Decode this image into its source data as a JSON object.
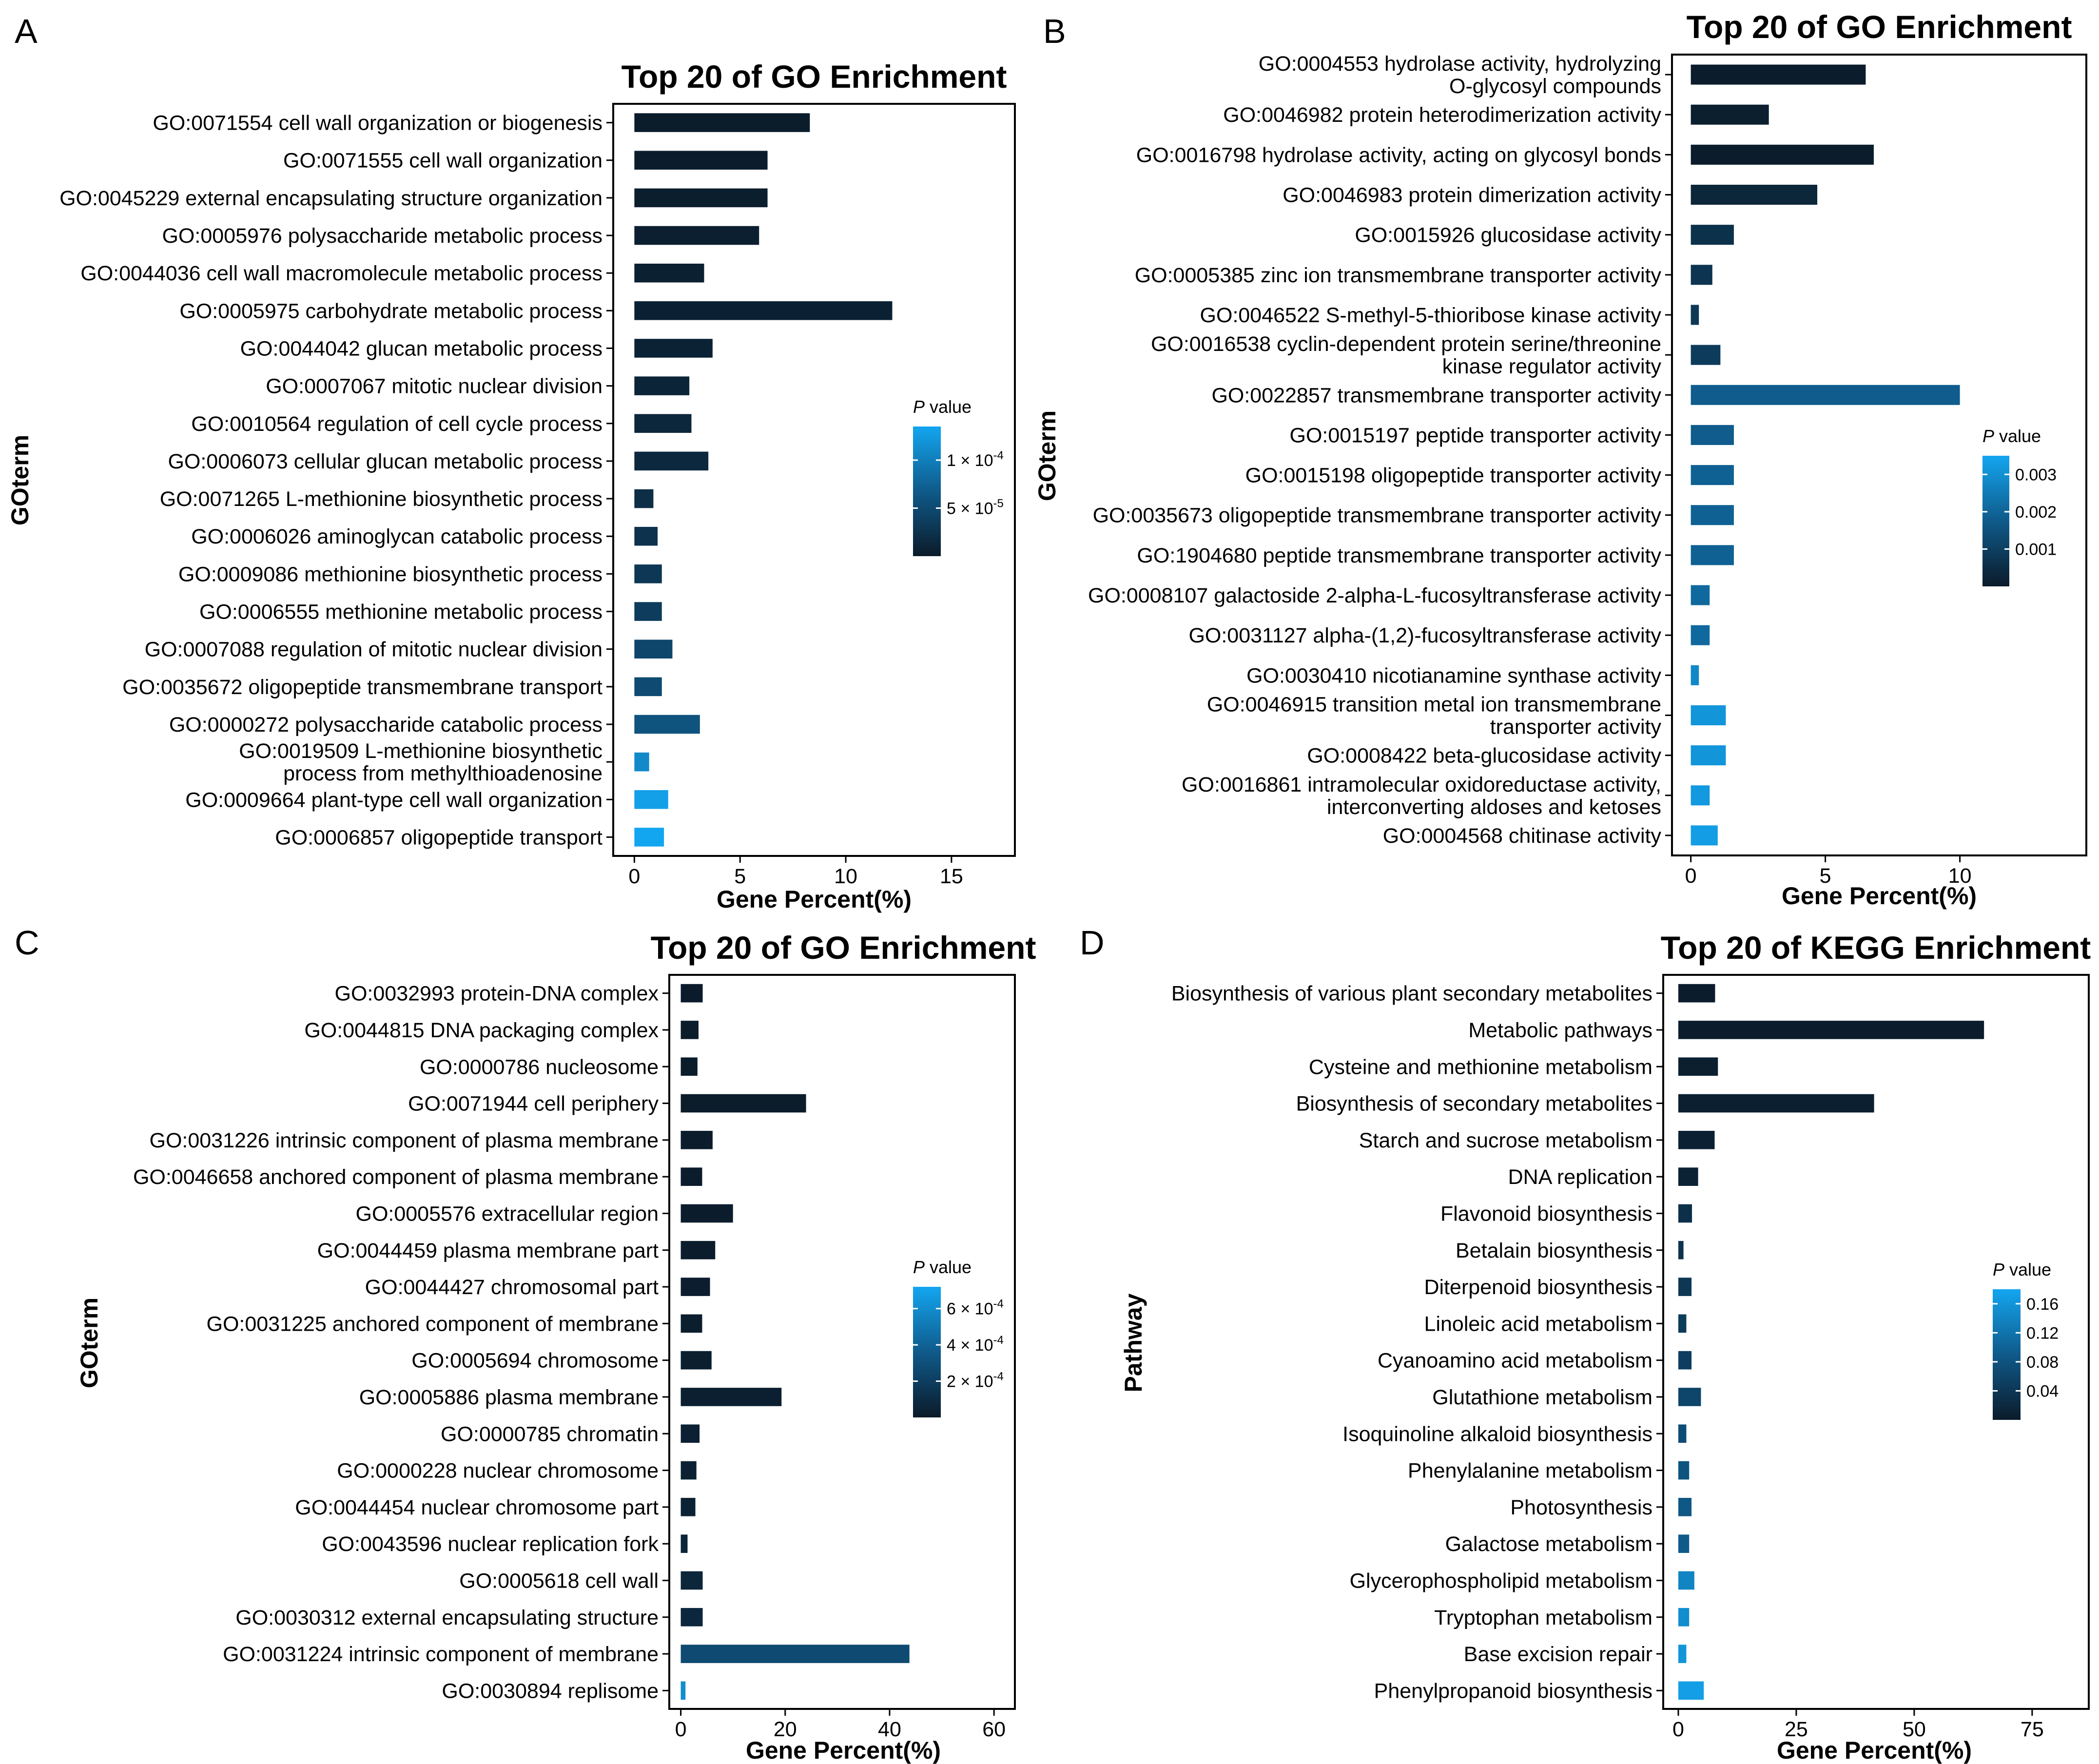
{
  "figure": {
    "panel_letters": [
      "A",
      "B",
      "C",
      "D"
    ]
  },
  "legend_label": {
    "p": "P",
    "rest": " value"
  },
  "chart_data": [
    {
      "panel": "A",
      "type": "bar",
      "orientation": "horizontal",
      "title": "Top 20 of GO Enrichment",
      "xlabel": "Gene Percent(%)",
      "ylabel": "GOterm",
      "xlim": [
        -1,
        18
      ],
      "xticks": [
        0,
        5,
        10,
        15
      ],
      "categories": [
        [
          "GO:0071554 cell wall organization or biogenesis"
        ],
        [
          "GO:0071555 cell wall organization"
        ],
        [
          "GO:0045229 external encapsulating structure organization"
        ],
        [
          "GO:0005976 polysaccharide metabolic process"
        ],
        [
          "GO:0044036 cell wall macromolecule metabolic process"
        ],
        [
          "GO:0005975 carbohydrate metabolic process"
        ],
        [
          "GO:0044042 glucan metabolic process"
        ],
        [
          "GO:0007067 mitotic nuclear division"
        ],
        [
          "GO:0010564 regulation of cell cycle process"
        ],
        [
          "GO:0006073 cellular glucan metabolic process"
        ],
        [
          "GO:0071265 L-methionine biosynthetic process"
        ],
        [
          "GO:0006026 aminoglycan catabolic process"
        ],
        [
          "GO:0009086 methionine biosynthetic process"
        ],
        [
          "GO:0006555 methionine metabolic process"
        ],
        [
          "GO:0007088 regulation of mitotic nuclear division"
        ],
        [
          "GO:0035672 oligopeptide transmembrane transport"
        ],
        [
          "GO:0000272 polysaccharide catabolic process"
        ],
        [
          "GO:0019509 L-methionine biosynthetic",
          "process from methylthioadenosine"
        ],
        [
          "GO:0009664 plant-type cell wall organization"
        ],
        [
          "GO:0006857 oligopeptide transport"
        ]
      ],
      "values": [
        8.3,
        6.3,
        6.3,
        5.9,
        3.3,
        12.2,
        3.7,
        2.6,
        2.7,
        3.5,
        0.9,
        1.1,
        1.3,
        1.3,
        1.8,
        1.3,
        3.1,
        0.7,
        1.6,
        1.4
      ],
      "pvalues": [
        1e-06,
        2e-06,
        3e-06,
        4e-06,
        5e-06,
        6e-06,
        8e-06,
        1e-05,
        1.2e-05,
        1.4e-05,
        2e-05,
        2.5e-05,
        3e-05,
        3.5e-05,
        4.5e-05,
        5e-05,
        6e-05,
        0.00011,
        0.00013,
        0.000135
      ],
      "legend": {
        "range": [
          0,
          0.000135
        ],
        "ticks": [
          {
            "value": 0.0001,
            "base": "1 × 10",
            "exp": "-4"
          },
          {
            "value": 5e-05,
            "base": "5 × 10",
            "exp": "-5"
          }
        ]
      }
    },
    {
      "panel": "B",
      "type": "bar",
      "orientation": "horizontal",
      "title": "Top 20 of GO Enrichment",
      "xlabel": "Gene Percent(%)",
      "ylabel": "GOterm",
      "xlim": [
        -0.7,
        14.7
      ],
      "xticks": [
        0,
        5,
        10
      ],
      "categories": [
        [
          "GO:0004553 hydrolase activity, hydrolyzing",
          "O-glycosyl compounds"
        ],
        [
          "GO:0046982 protein heterodimerization activity"
        ],
        [
          "GO:0016798 hydrolase activity, acting on glycosyl bonds"
        ],
        [
          "GO:0046983 protein dimerization activity"
        ],
        [
          "GO:0015926 glucosidase activity"
        ],
        [
          "GO:0005385 zinc ion transmembrane transporter activity"
        ],
        [
          "GO:0046522 S-methyl-5-thioribose kinase activity"
        ],
        [
          "GO:0016538 cyclin-dependent protein serine/threonine",
          "kinase regulator activity"
        ],
        [
          "GO:0022857 transmembrane transporter activity"
        ],
        [
          "GO:0015197 peptide transporter activity"
        ],
        [
          "GO:0015198 oligopeptide transporter activity"
        ],
        [
          "GO:0035673 oligopeptide transmembrane transporter activity"
        ],
        [
          "GO:1904680 peptide transmembrane transporter activity"
        ],
        [
          "GO:0008107 galactoside 2-alpha-L-fucosyltransferase activity"
        ],
        [
          "GO:0031127 alpha-(1,2)-fucosyltransferase activity"
        ],
        [
          "GO:0030410 nicotianamine synthase activity"
        ],
        [
          "GO:0046915 transition metal ion transmembrane",
          "transporter activity"
        ],
        [
          "GO:0008422 beta-glucosidase activity"
        ],
        [
          "GO:0016861 intramolecular oxidoreductase activity,",
          "interconverting aldoses and ketoses"
        ],
        [
          "GO:0004568 chitinase activity"
        ]
      ],
      "values": [
        6.5,
        2.9,
        6.8,
        4.7,
        1.6,
        0.8,
        0.3,
        1.1,
        10.0,
        1.6,
        1.6,
        1.6,
        1.6,
        0.7,
        0.7,
        0.3,
        1.3,
        1.3,
        0.7,
        1.0
      ],
      "pvalues": [
        3e-05,
        0.0001,
        5e-05,
        0.0003,
        0.0006,
        0.0007,
        0.0008,
        0.0009,
        0.0018,
        0.0018,
        0.0019,
        0.0019,
        0.0019,
        0.0021,
        0.0021,
        0.0028,
        0.0031,
        0.0031,
        0.0032,
        0.0033
      ],
      "legend": {
        "range": [
          0,
          0.0035
        ],
        "ticks": [
          {
            "value": 0.003,
            "base": "0.003"
          },
          {
            "value": 0.002,
            "base": "0.002"
          },
          {
            "value": 0.001,
            "base": "0.001"
          }
        ]
      }
    },
    {
      "panel": "C",
      "type": "bar",
      "orientation": "horizontal",
      "title": "Top 20 of GO Enrichment",
      "xlabel": "Gene Percent(%)",
      "ylabel": "GOterm",
      "xlim": [
        -2.2,
        64
      ],
      "xticks": [
        0,
        20,
        40,
        60
      ],
      "categories": [
        [
          "GO:0032993 protein-DNA complex"
        ],
        [
          "GO:0044815 DNA packaging complex"
        ],
        [
          "GO:0000786 nucleosome"
        ],
        [
          "GO:0071944 cell periphery"
        ],
        [
          "GO:0031226 intrinsic component of plasma membrane"
        ],
        [
          "GO:0046658 anchored component of plasma membrane"
        ],
        [
          "GO:0005576 extracellular region"
        ],
        [
          "GO:0044459 plasma membrane part"
        ],
        [
          "GO:0044427 chromosomal part"
        ],
        [
          "GO:0031225 anchored component of membrane"
        ],
        [
          "GO:0005694 chromosome"
        ],
        [
          "GO:0005886 plasma membrane"
        ],
        [
          "GO:0000785 chromatin"
        ],
        [
          "GO:0000228 nuclear chromosome"
        ],
        [
          "GO:0044454 nuclear chromosome part"
        ],
        [
          "GO:0043596 nuclear replication fork"
        ],
        [
          "GO:0005618 cell wall"
        ],
        [
          "GO:0030312 external encapsulating structure"
        ],
        [
          "GO:0031224 intrinsic component of membrane"
        ],
        [
          "GO:0030894 replisome"
        ]
      ],
      "values": [
        4.2,
        3.4,
        3.2,
        24.0,
        6.1,
        4.1,
        10.0,
        6.6,
        5.6,
        4.1,
        5.9,
        19.3,
        3.6,
        3.0,
        2.8,
        1.3,
        4.2,
        4.2,
        43.8,
        0.9
      ],
      "pvalues": [
        2e-06,
        3e-06,
        4e-06,
        5e-06,
        6e-06,
        8e-06,
        1e-05,
        1.2e-05,
        1.4e-05,
        1.6e-05,
        2e-05,
        2.5e-05,
        3e-05,
        3.5e-05,
        4e-05,
        5e-05,
        6e-05,
        7e-05,
        0.00027,
        0.0006
      ],
      "legend": {
        "range": [
          0,
          0.00072
        ],
        "ticks": [
          {
            "value": 0.0006,
            "base": "6 × 10",
            "exp": "-4"
          },
          {
            "value": 0.0004,
            "base": "4 × 10",
            "exp": "-4"
          },
          {
            "value": 0.0002,
            "base": "2 × 10",
            "exp": "-4"
          }
        ]
      }
    },
    {
      "panel": "D",
      "type": "bar",
      "orientation": "horizontal",
      "title": "Top 20 of KEGG Enrichment",
      "xlabel": "Gene Percent(%)",
      "ylabel": "Pathway",
      "xlim": [
        -3.2,
        87
      ],
      "xticks": [
        0,
        25,
        50,
        75
      ],
      "categories": [
        [
          "Biosynthesis of various plant secondary metabolites"
        ],
        [
          "Metabolic pathways"
        ],
        [
          "Cysteine and methionine metabolism"
        ],
        [
          "Biosynthesis of secondary metabolites"
        ],
        [
          "Starch and sucrose metabolism"
        ],
        [
          "DNA replication"
        ],
        [
          "Flavonoid biosynthesis"
        ],
        [
          "Betalain biosynthesis"
        ],
        [
          "Diterpenoid biosynthesis"
        ],
        [
          "Linoleic acid metabolism"
        ],
        [
          "Cyanoamino acid metabolism"
        ],
        [
          "Glutathione metabolism"
        ],
        [
          "Isoquinoline alkaloid biosynthesis"
        ],
        [
          "Phenylalanine metabolism"
        ],
        [
          "Photosynthesis"
        ],
        [
          "Galactose metabolism"
        ],
        [
          "Glycerophospholipid metabolism"
        ],
        [
          "Tryptophan metabolism"
        ],
        [
          "Base excision repair"
        ],
        [
          "Phenylpropanoid biosynthesis"
        ]
      ],
      "values": [
        7.8,
        64.8,
        8.4,
        41.5,
        7.7,
        4.2,
        2.9,
        1.1,
        2.8,
        1.7,
        2.8,
        4.8,
        1.7,
        2.3,
        2.8,
        2.3,
        3.4,
        2.3,
        1.7,
        5.4
      ],
      "pvalues": [
        0.002,
        0.003,
        0.005,
        0.006,
        0.008,
        0.01,
        0.03,
        0.035,
        0.04,
        0.045,
        0.05,
        0.06,
        0.07,
        0.08,
        0.085,
        0.09,
        0.14,
        0.15,
        0.16,
        0.17
      ],
      "legend": {
        "range": [
          0,
          0.18
        ],
        "ticks": [
          {
            "value": 0.16,
            "base": "0.16"
          },
          {
            "value": 0.12,
            "base": "0.12"
          },
          {
            "value": 0.08,
            "base": "0.08"
          },
          {
            "value": 0.04,
            "base": "0.04"
          }
        ]
      }
    }
  ],
  "colors": {
    "dark": "#0b1b2a",
    "mid": "#0f5a8a",
    "light": "#13a6f0",
    "axis": "#000000"
  }
}
